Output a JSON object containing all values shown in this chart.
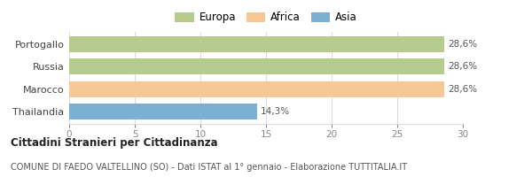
{
  "categories": [
    "Portogallo",
    "Russia",
    "Marocco",
    "Thailandia"
  ],
  "values": [
    28.6,
    28.6,
    28.6,
    14.3
  ],
  "bar_colors": [
    "#b5cc8e",
    "#b5cc8e",
    "#f5c896",
    "#7bafd4"
  ],
  "legend": [
    {
      "label": "Europa",
      "color": "#b5cc8e"
    },
    {
      "label": "Africa",
      "color": "#f5c896"
    },
    {
      "label": "Asia",
      "color": "#7bafd4"
    }
  ],
  "bar_labels": [
    "28,6%",
    "28,6%",
    "28,6%",
    "14,3%"
  ],
  "xlim": [
    0,
    30
  ],
  "xticks": [
    0,
    5,
    10,
    15,
    20,
    25,
    30
  ],
  "title_bold": "Cittadini Stranieri per Cittadinanza",
  "subtitle": "COMUNE DI FAEDO VALTELLINO (SO) - Dati ISTAT al 1° gennaio - Elaborazione TUTTITALIA.IT",
  "bg_color": "#ffffff",
  "grid_color": "#dddddd"
}
